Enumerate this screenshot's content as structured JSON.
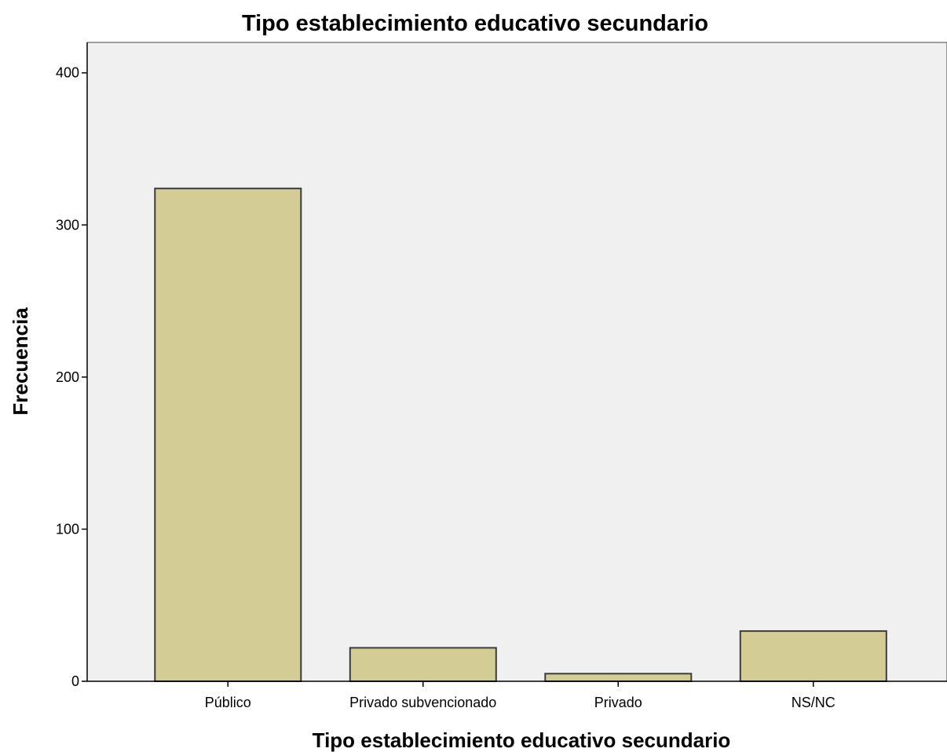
{
  "chart_data": {
    "type": "bar",
    "title": "Tipo establecimiento educativo secundario",
    "xlabel": "Tipo establecimiento educativo secundario",
    "ylabel": "Frecuencia",
    "categories": [
      "Público",
      "Privado subvencionado",
      "Privado",
      "NS/NC"
    ],
    "values": [
      324,
      22,
      5,
      33
    ],
    "ylim": [
      0,
      420
    ],
    "yticks": [
      "0",
      "100",
      "200",
      "300",
      "400"
    ],
    "grid": false,
    "legend": "none"
  },
  "colors": {
    "bar_fill": "#d3cd95",
    "bar_stroke": "#3c3c3c",
    "plot_background": "#f0f0f0",
    "axis": "#000000"
  }
}
